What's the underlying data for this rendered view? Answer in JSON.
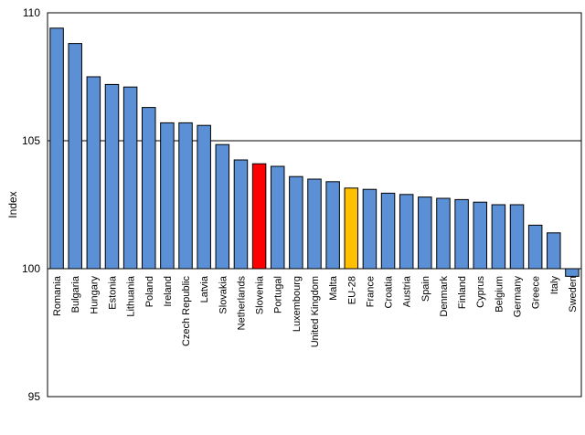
{
  "chart_data": {
    "type": "bar",
    "ylabel": "Index",
    "xlabel": "",
    "title": "",
    "ylim": [
      95,
      110
    ],
    "yticks": [
      95,
      100,
      105,
      110
    ],
    "baseline": 100,
    "grid": true,
    "bar_color": "#5b8fd6",
    "highlight_colors": {
      "Slovenia": "#ff0000",
      "EU-28": "#ffc000"
    },
    "categories": [
      "Romania",
      "Bulgaria",
      "Hungary",
      "Estonia",
      "Lithuania",
      "Poland",
      "Ireland",
      "Czech Republic",
      "Latvia",
      "Slovakia",
      "Netherlands",
      "Slovenia",
      "Portugal",
      "Luxembourg",
      "United Kingdom",
      "Malta",
      "EU-28",
      "France",
      "Croatia",
      "Austria",
      "Spain",
      "Denmark",
      "Finland",
      "Cyprus",
      "Belgium",
      "Germany",
      "Greece",
      "Italy",
      "Sweden"
    ],
    "values": [
      109.4,
      108.8,
      107.5,
      107.2,
      107.1,
      106.3,
      105.7,
      105.7,
      105.6,
      104.85,
      104.25,
      104.1,
      104.0,
      103.6,
      103.5,
      103.4,
      103.15,
      103.1,
      102.95,
      102.9,
      102.8,
      102.75,
      102.7,
      102.6,
      102.5,
      102.5,
      101.7,
      101.4,
      99.7
    ]
  }
}
